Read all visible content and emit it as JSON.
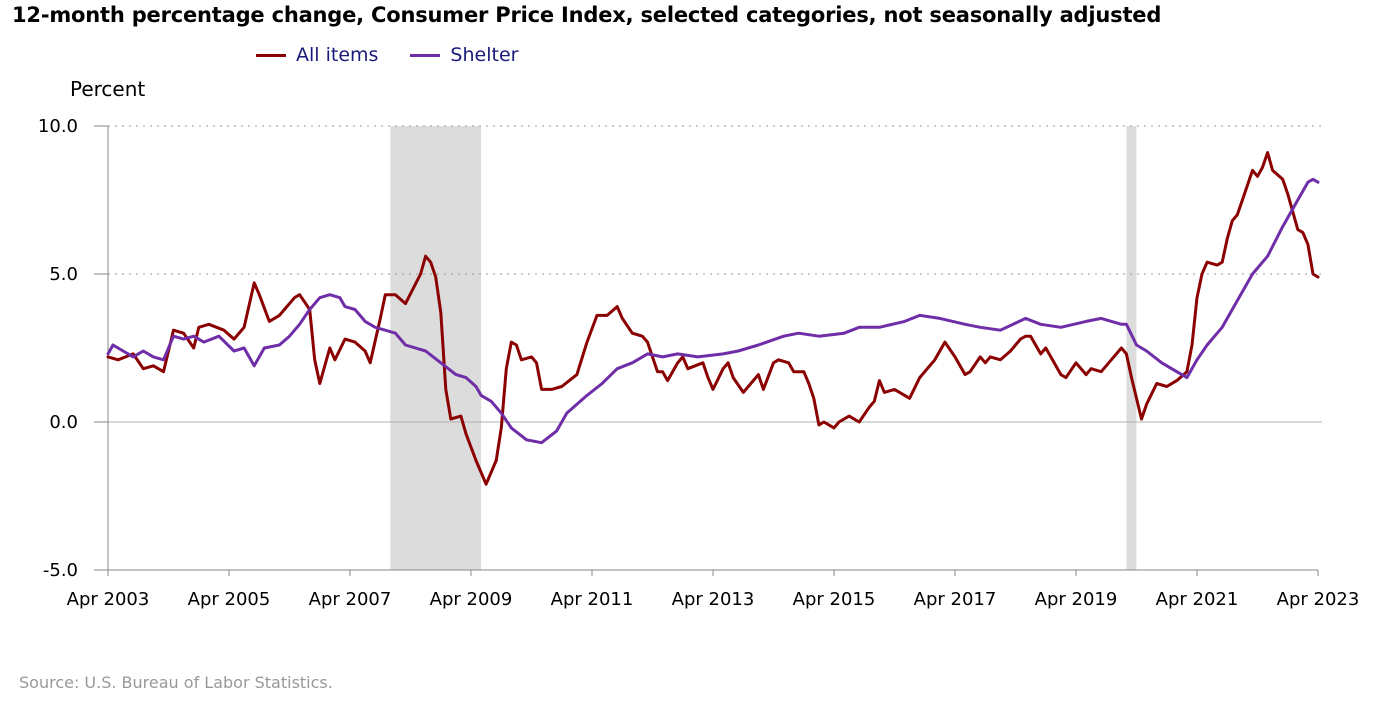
{
  "title": "12-month percentage change, Consumer Price Index, selected categories, not seasonally adjusted",
  "y_unit_label": "Percent",
  "source": "Source: U.S. Bureau of Labor Statistics.",
  "colors": {
    "all_items": "#8b0000",
    "shelter": "#6f2da8",
    "recession": "#dcdcdc",
    "grid": "#999999"
  },
  "chart_data": {
    "type": "line",
    "title": "12-month percentage change, Consumer Price Index, selected categories, not seasonally adjusted",
    "ylabel": "Percent",
    "ylim": [
      -5,
      10
    ],
    "yticks": [
      10,
      5,
      0,
      -5
    ],
    "ytick_labels": [
      "10.0",
      "5.0",
      "0.0",
      "-5.0"
    ],
    "xlim": [
      "2003-04",
      "2023-04"
    ],
    "xtick_labels": [
      "Apr 2003",
      "Apr 2005",
      "Apr 2007",
      "Apr 2009",
      "Apr 2011",
      "Apr 2013",
      "Apr 2015",
      "Apr 2017",
      "Apr 2019",
      "Apr 2021",
      "Apr 2023"
    ],
    "legend_position": "top-left",
    "grid": "horizontal dotted",
    "recessions": [
      [
        "2007-12",
        "2009-06"
      ],
      [
        "2020-02",
        "2020-04"
      ]
    ],
    "series": [
      {
        "name": "All items",
        "color": "#8b0000",
        "points": [
          [
            "2003-04",
            2.2
          ],
          [
            "2003-06",
            2.1
          ],
          [
            "2003-09",
            2.3
          ],
          [
            "2003-11",
            1.8
          ],
          [
            "2004-01",
            1.9
          ],
          [
            "2004-03",
            1.7
          ],
          [
            "2004-05",
            3.1
          ],
          [
            "2004-07",
            3.0
          ],
          [
            "2004-09",
            2.5
          ],
          [
            "2004-10",
            3.2
          ],
          [
            "2004-12",
            3.3
          ],
          [
            "2005-03",
            3.1
          ],
          [
            "2005-05",
            2.8
          ],
          [
            "2005-07",
            3.2
          ],
          [
            "2005-09",
            4.7
          ],
          [
            "2005-10",
            4.3
          ],
          [
            "2005-12",
            3.4
          ],
          [
            "2006-02",
            3.6
          ],
          [
            "2006-05",
            4.2
          ],
          [
            "2006-06",
            4.3
          ],
          [
            "2006-08",
            3.8
          ],
          [
            "2006-09",
            2.1
          ],
          [
            "2006-10",
            1.3
          ],
          [
            "2006-12",
            2.5
          ],
          [
            "2007-01",
            2.1
          ],
          [
            "2007-03",
            2.8
          ],
          [
            "2007-05",
            2.7
          ],
          [
            "2007-07",
            2.4
          ],
          [
            "2007-08",
            2.0
          ],
          [
            "2007-10",
            3.5
          ],
          [
            "2007-11",
            4.3
          ],
          [
            "2008-01",
            4.3
          ],
          [
            "2008-03",
            4.0
          ],
          [
            "2008-06",
            5.0
          ],
          [
            "2008-07",
            5.6
          ],
          [
            "2008-08",
            5.4
          ],
          [
            "2008-09",
            4.9
          ],
          [
            "2008-10",
            3.7
          ],
          [
            "2008-11",
            1.1
          ],
          [
            "2008-12",
            0.1
          ],
          [
            "2009-02",
            0.2
          ],
          [
            "2009-03",
            -0.4
          ],
          [
            "2009-05",
            -1.3
          ],
          [
            "2009-07",
            -2.1
          ],
          [
            "2009-09",
            -1.3
          ],
          [
            "2009-10",
            -0.2
          ],
          [
            "2009-11",
            1.8
          ],
          [
            "2009-12",
            2.7
          ],
          [
            "2010-01",
            2.6
          ],
          [
            "2010-02",
            2.1
          ],
          [
            "2010-04",
            2.2
          ],
          [
            "2010-05",
            2.0
          ],
          [
            "2010-06",
            1.1
          ],
          [
            "2010-08",
            1.1
          ],
          [
            "2010-10",
            1.2
          ],
          [
            "2011-01",
            1.6
          ],
          [
            "2011-03",
            2.7
          ],
          [
            "2011-05",
            3.6
          ],
          [
            "2011-07",
            3.6
          ],
          [
            "2011-09",
            3.9
          ],
          [
            "2011-10",
            3.5
          ],
          [
            "2011-12",
            3.0
          ],
          [
            "2012-02",
            2.9
          ],
          [
            "2012-03",
            2.7
          ],
          [
            "2012-05",
            1.7
          ],
          [
            "2012-06",
            1.7
          ],
          [
            "2012-07",
            1.4
          ],
          [
            "2012-09",
            2.0
          ],
          [
            "2012-10",
            2.2
          ],
          [
            "2012-11",
            1.8
          ],
          [
            "2013-02",
            2.0
          ],
          [
            "2013-03",
            1.5
          ],
          [
            "2013-04",
            1.1
          ],
          [
            "2013-06",
            1.8
          ],
          [
            "2013-07",
            2.0
          ],
          [
            "2013-08",
            1.5
          ],
          [
            "2013-10",
            1.0
          ],
          [
            "2013-11",
            1.2
          ],
          [
            "2014-01",
            1.6
          ],
          [
            "2014-02",
            1.1
          ],
          [
            "2014-04",
            2.0
          ],
          [
            "2014-05",
            2.1
          ],
          [
            "2014-07",
            2.0
          ],
          [
            "2014-08",
            1.7
          ],
          [
            "2014-10",
            1.7
          ],
          [
            "2014-11",
            1.3
          ],
          [
            "2014-12",
            0.8
          ],
          [
            "2015-01",
            -0.1
          ],
          [
            "2015-02",
            0.0
          ],
          [
            "2015-04",
            -0.2
          ],
          [
            "2015-05",
            0.0
          ],
          [
            "2015-07",
            0.2
          ],
          [
            "2015-09",
            0.0
          ],
          [
            "2015-11",
            0.5
          ],
          [
            "2015-12",
            0.7
          ],
          [
            "2016-01",
            1.4
          ],
          [
            "2016-02",
            1.0
          ],
          [
            "2016-04",
            1.1
          ],
          [
            "2016-07",
            0.8
          ],
          [
            "2016-09",
            1.5
          ],
          [
            "2016-12",
            2.1
          ],
          [
            "2017-02",
            2.7
          ],
          [
            "2017-04",
            2.2
          ],
          [
            "2017-06",
            1.6
          ],
          [
            "2017-07",
            1.7
          ],
          [
            "2017-09",
            2.2
          ],
          [
            "2017-10",
            2.0
          ],
          [
            "2017-11",
            2.2
          ],
          [
            "2018-01",
            2.1
          ],
          [
            "2018-03",
            2.4
          ],
          [
            "2018-05",
            2.8
          ],
          [
            "2018-06",
            2.9
          ],
          [
            "2018-07",
            2.9
          ],
          [
            "2018-09",
            2.3
          ],
          [
            "2018-10",
            2.5
          ],
          [
            "2019-01",
            1.6
          ],
          [
            "2019-02",
            1.5
          ],
          [
            "2019-04",
            2.0
          ],
          [
            "2019-06",
            1.6
          ],
          [
            "2019-07",
            1.8
          ],
          [
            "2019-09",
            1.7
          ],
          [
            "2019-11",
            2.1
          ],
          [
            "2020-01",
            2.5
          ],
          [
            "2020-02",
            2.3
          ],
          [
            "2020-03",
            1.5
          ],
          [
            "2020-05",
            0.1
          ],
          [
            "2020-06",
            0.6
          ],
          [
            "2020-08",
            1.3
          ],
          [
            "2020-10",
            1.2
          ],
          [
            "2020-12",
            1.4
          ],
          [
            "2021-02",
            1.7
          ],
          [
            "2021-03",
            2.6
          ],
          [
            "2021-04",
            4.2
          ],
          [
            "2021-05",
            5.0
          ],
          [
            "2021-06",
            5.4
          ],
          [
            "2021-08",
            5.3
          ],
          [
            "2021-09",
            5.4
          ],
          [
            "2021-10",
            6.2
          ],
          [
            "2021-11",
            6.8
          ],
          [
            "2021-12",
            7.0
          ],
          [
            "2022-01",
            7.5
          ],
          [
            "2022-03",
            8.5
          ],
          [
            "2022-04",
            8.3
          ],
          [
            "2022-05",
            8.6
          ],
          [
            "2022-06",
            9.1
          ],
          [
            "2022-07",
            8.5
          ],
          [
            "2022-09",
            8.2
          ],
          [
            "2022-10",
            7.7
          ],
          [
            "2022-11",
            7.1
          ],
          [
            "2022-12",
            6.5
          ],
          [
            "2023-01",
            6.4
          ],
          [
            "2023-02",
            6.0
          ],
          [
            "2023-03",
            5.0
          ],
          [
            "2023-04",
            4.9
          ]
        ]
      },
      {
        "name": "Shelter",
        "color": "#6f2da8",
        "points": [
          [
            "2003-04",
            2.3
          ],
          [
            "2003-05",
            2.6
          ],
          [
            "2003-07",
            2.4
          ],
          [
            "2003-09",
            2.2
          ],
          [
            "2003-11",
            2.4
          ],
          [
            "2004-01",
            2.2
          ],
          [
            "2004-03",
            2.1
          ],
          [
            "2004-05",
            2.9
          ],
          [
            "2004-07",
            2.8
          ],
          [
            "2004-09",
            2.9
          ],
          [
            "2004-11",
            2.7
          ],
          [
            "2005-02",
            2.9
          ],
          [
            "2005-05",
            2.4
          ],
          [
            "2005-07",
            2.5
          ],
          [
            "2005-09",
            1.9
          ],
          [
            "2005-11",
            2.5
          ],
          [
            "2006-02",
            2.6
          ],
          [
            "2006-04",
            2.9
          ],
          [
            "2006-06",
            3.3
          ],
          [
            "2006-08",
            3.8
          ],
          [
            "2006-10",
            4.2
          ],
          [
            "2006-12",
            4.3
          ],
          [
            "2007-02",
            4.2
          ],
          [
            "2007-03",
            3.9
          ],
          [
            "2007-05",
            3.8
          ],
          [
            "2007-07",
            3.4
          ],
          [
            "2007-09",
            3.2
          ],
          [
            "2007-11",
            3.1
          ],
          [
            "2008-01",
            3.0
          ],
          [
            "2008-03",
            2.6
          ],
          [
            "2008-05",
            2.5
          ],
          [
            "2008-07",
            2.4
          ],
          [
            "2008-10",
            2.0
          ],
          [
            "2009-01",
            1.6
          ],
          [
            "2009-03",
            1.5
          ],
          [
            "2009-05",
            1.2
          ],
          [
            "2009-06",
            0.9
          ],
          [
            "2009-08",
            0.7
          ],
          [
            "2009-10",
            0.3
          ],
          [
            "2009-12",
            -0.2
          ],
          [
            "2010-03",
            -0.6
          ],
          [
            "2010-06",
            -0.7
          ],
          [
            "2010-09",
            -0.3
          ],
          [
            "2010-11",
            0.3
          ],
          [
            "2011-03",
            0.9
          ],
          [
            "2011-06",
            1.3
          ],
          [
            "2011-09",
            1.8
          ],
          [
            "2011-12",
            2.0
          ],
          [
            "2012-03",
            2.3
          ],
          [
            "2012-06",
            2.2
          ],
          [
            "2012-09",
            2.3
          ],
          [
            "2013-01",
            2.2
          ],
          [
            "2013-06",
            2.3
          ],
          [
            "2013-09",
            2.4
          ],
          [
            "2014-01",
            2.6
          ],
          [
            "2014-06",
            2.9
          ],
          [
            "2014-09",
            3.0
          ],
          [
            "2015-01",
            2.9
          ],
          [
            "2015-06",
            3.0
          ],
          [
            "2015-09",
            3.2
          ],
          [
            "2016-01",
            3.2
          ],
          [
            "2016-06",
            3.4
          ],
          [
            "2016-09",
            3.6
          ],
          [
            "2017-01",
            3.5
          ],
          [
            "2017-06",
            3.3
          ],
          [
            "2017-09",
            3.2
          ],
          [
            "2018-01",
            3.1
          ],
          [
            "2018-06",
            3.5
          ],
          [
            "2018-09",
            3.3
          ],
          [
            "2019-01",
            3.2
          ],
          [
            "2019-06",
            3.4
          ],
          [
            "2019-09",
            3.5
          ],
          [
            "2020-01",
            3.3
          ],
          [
            "2020-02",
            3.3
          ],
          [
            "2020-04",
            2.6
          ],
          [
            "2020-06",
            2.4
          ],
          [
            "2020-09",
            2.0
          ],
          [
            "2020-12",
            1.7
          ],
          [
            "2021-02",
            1.5
          ],
          [
            "2021-04",
            2.1
          ],
          [
            "2021-06",
            2.6
          ],
          [
            "2021-09",
            3.2
          ],
          [
            "2021-12",
            4.1
          ],
          [
            "2022-03",
            5.0
          ],
          [
            "2022-06",
            5.6
          ],
          [
            "2022-09",
            6.6
          ],
          [
            "2022-12",
            7.5
          ],
          [
            "2023-02",
            8.1
          ],
          [
            "2023-03",
            8.2
          ],
          [
            "2023-04",
            8.1
          ]
        ]
      }
    ]
  }
}
